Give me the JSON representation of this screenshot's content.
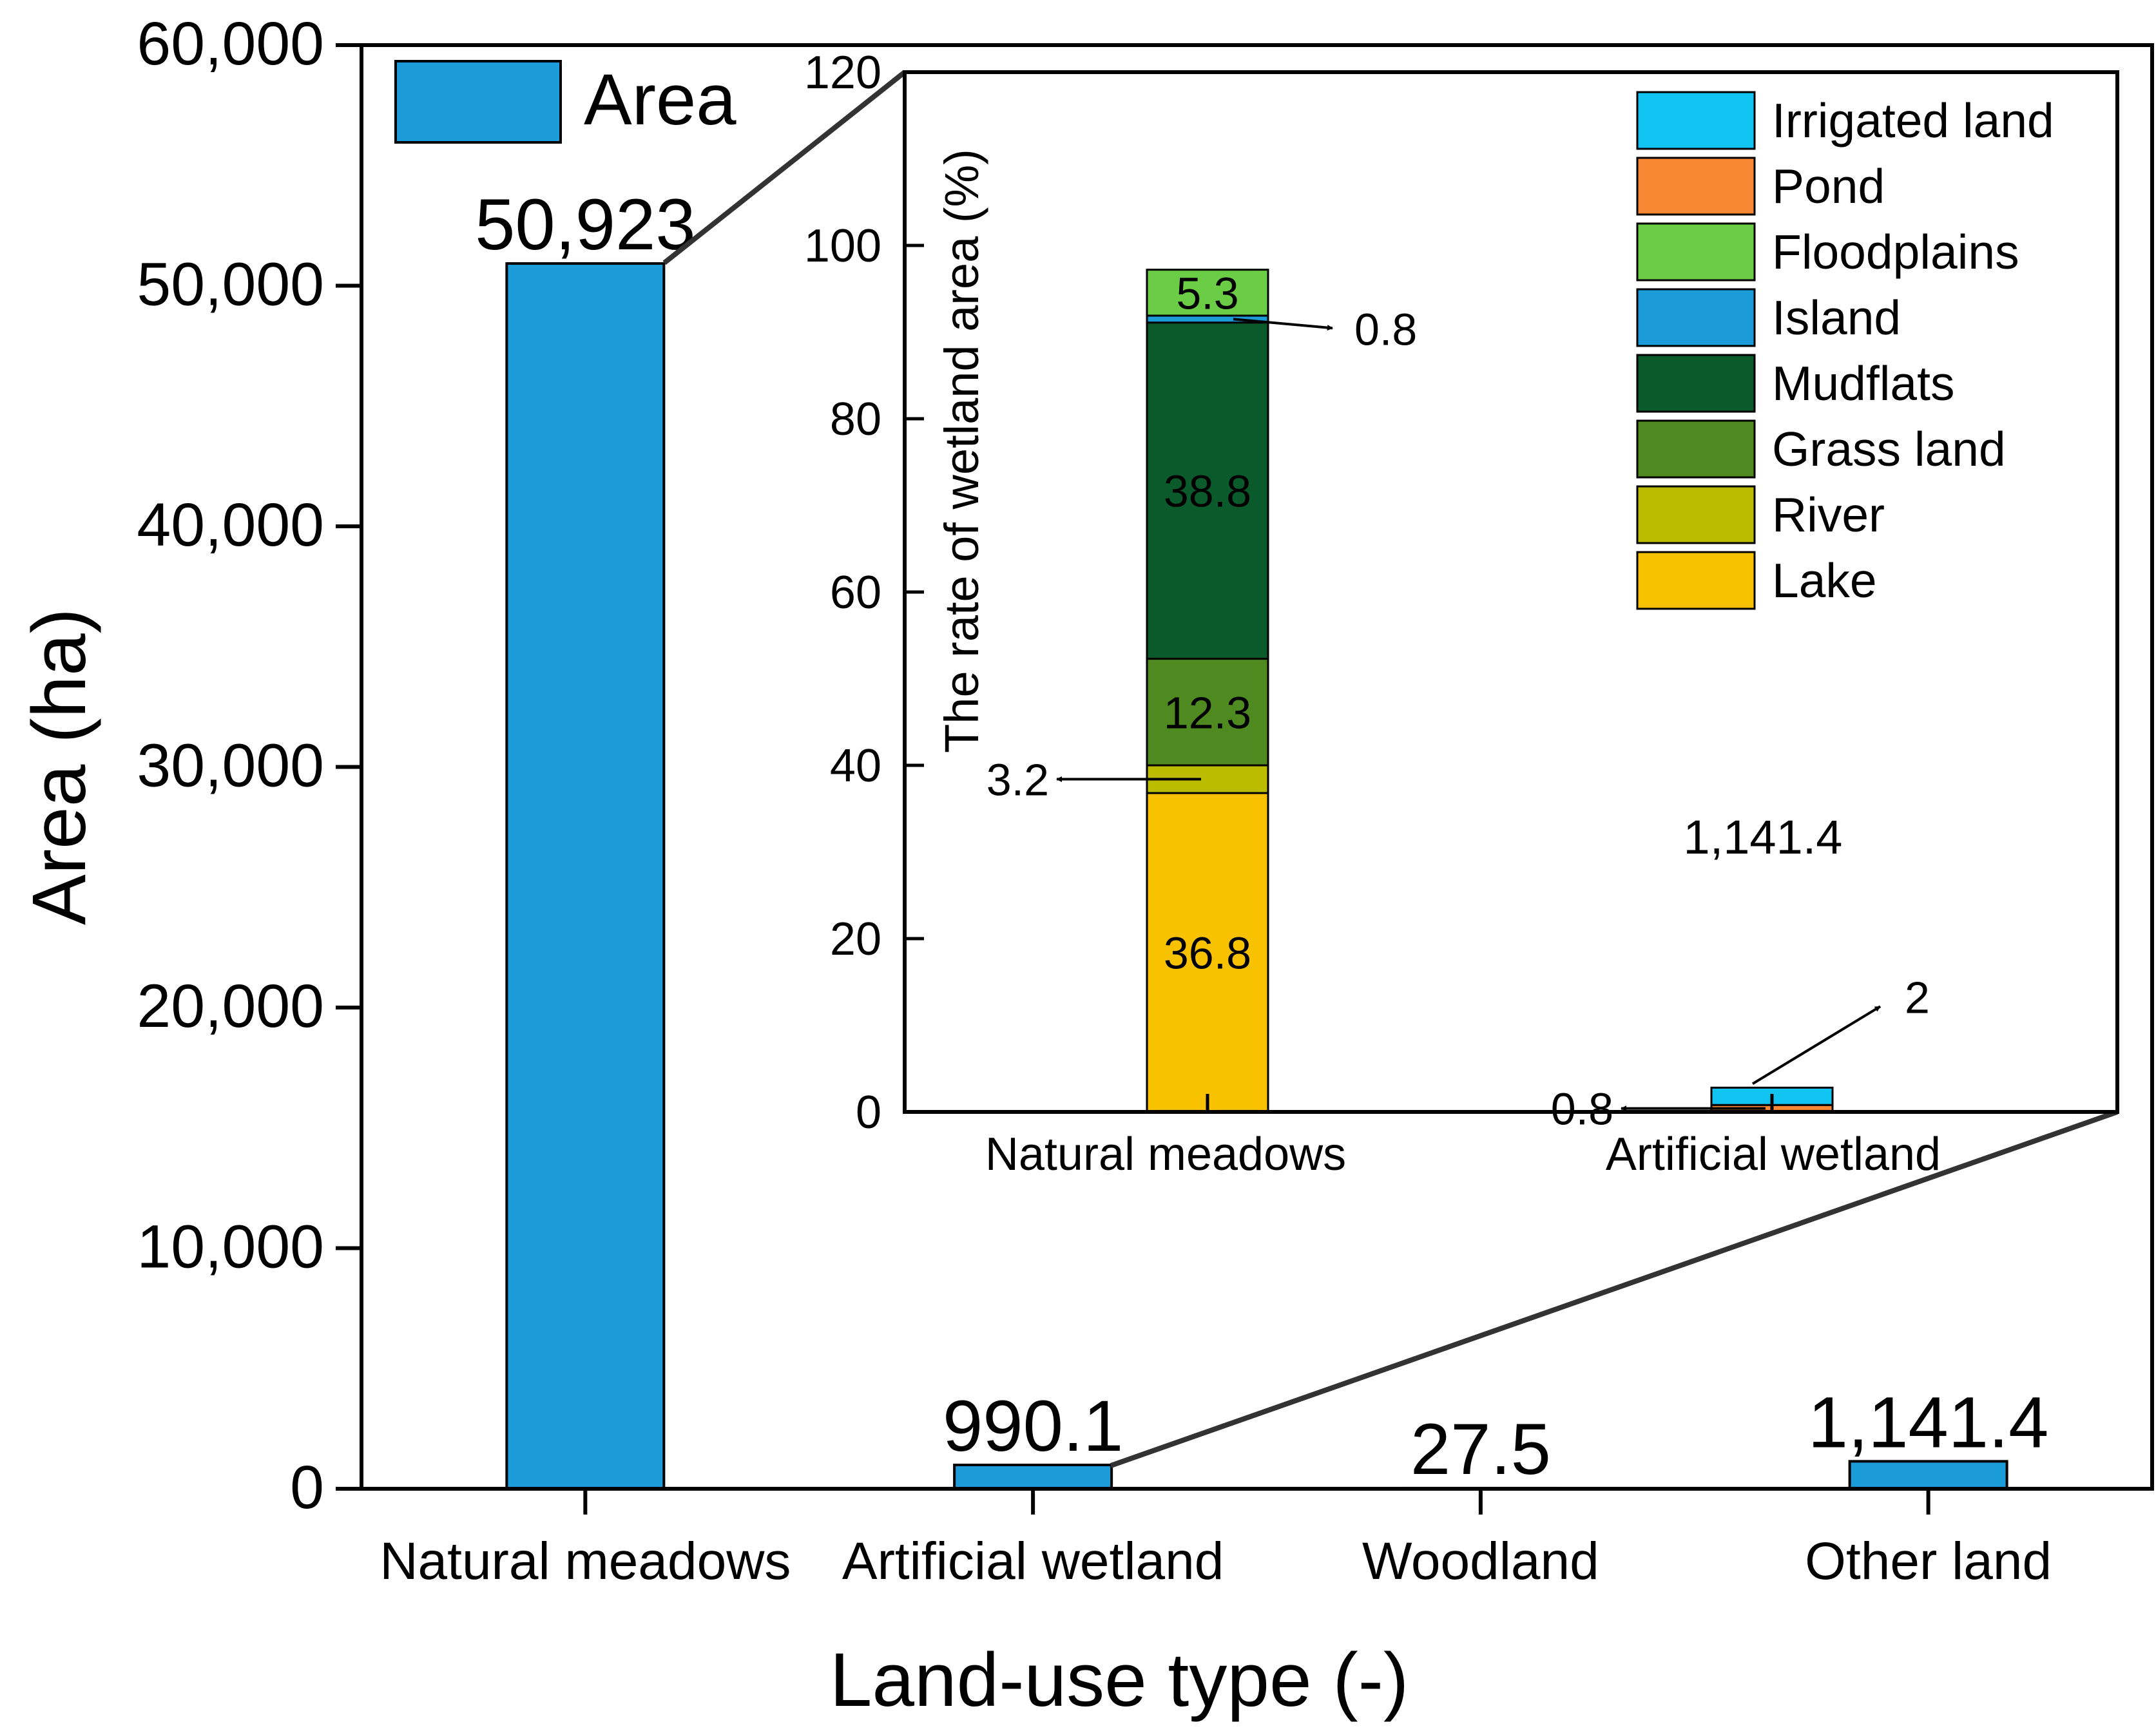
{
  "colors": {
    "area_bar": "#1b9bd7",
    "Irrigated land": "#12c4f2",
    "Pond": "#f98632",
    "Floodplains": "#6bcd45",
    "Island": "#1b9bd7",
    "Mudflats": "#0b5a2b",
    "Grass land": "#4f8a21",
    "River": "#bbbb00",
    "Lake": "#f8c200"
  },
  "chart_data": [
    {
      "id": "main",
      "type": "bar",
      "title": "",
      "xlabel": "Land-use type (-)",
      "ylabel": "Area (ha)",
      "ylim": [
        0,
        60000
      ],
      "yticks": [
        0,
        10000,
        20000,
        30000,
        40000,
        50000,
        60000
      ],
      "ytick_labels": [
        "0",
        "10,000",
        "20,000",
        "30,000",
        "40,000",
        "50,000",
        "60,000"
      ],
      "categories": [
        "Natural meadows",
        "Artificial wetland",
        "Woodland",
        "Other land"
      ],
      "series": [
        {
          "name": "Area",
          "values": [
            50923,
            990.1,
            27.5,
            1141.4
          ],
          "labels": [
            "50,923",
            "990.1",
            "27.5",
            "1,141.4"
          ]
        }
      ],
      "legend": {
        "position": "top-left",
        "entries": [
          "Area"
        ]
      }
    },
    {
      "id": "inset",
      "type": "bar",
      "stacked": true,
      "title": "",
      "xlabel": "",
      "ylabel": "The rate of wetland area (%)",
      "ylim": [
        0,
        120
      ],
      "yticks": [
        0,
        20,
        40,
        60,
        80,
        100,
        120
      ],
      "ytick_labels": [
        "0",
        "20",
        "40",
        "60",
        "80",
        "100",
        "120"
      ],
      "categories": [
        "Natural meadows",
        "Artificial wetland"
      ],
      "series": [
        {
          "name": "Lake",
          "values": [
            36.8,
            0
          ]
        },
        {
          "name": "River",
          "values": [
            3.2,
            0
          ]
        },
        {
          "name": "Grass land",
          "values": [
            12.3,
            0
          ]
        },
        {
          "name": "Mudflats",
          "values": [
            38.8,
            0
          ]
        },
        {
          "name": "Island",
          "values": [
            0.8,
            0
          ]
        },
        {
          "name": "Floodplains",
          "values": [
            5.3,
            0
          ]
        },
        {
          "name": "Pond",
          "values": [
            0,
            0.8
          ]
        },
        {
          "name": "Irrigated land",
          "values": [
            0,
            2
          ]
        }
      ],
      "annotations": [
        {
          "text": "36.8",
          "category": "Natural meadows",
          "series": "Lake",
          "style": "inside"
        },
        {
          "text": "3.2",
          "category": "Natural meadows",
          "series": "River",
          "style": "arrow-left"
        },
        {
          "text": "12.3",
          "category": "Natural meadows",
          "series": "Grass land",
          "style": "inside"
        },
        {
          "text": "38.8",
          "category": "Natural meadows",
          "series": "Mudflats",
          "style": "inside"
        },
        {
          "text": "0.8",
          "category": "Natural meadows",
          "series": "Island",
          "style": "arrow-right"
        },
        {
          "text": "5.3",
          "category": "Natural meadows",
          "series": "Floodplains",
          "style": "inside"
        },
        {
          "text": "0.8",
          "category": "Artificial wetland",
          "series": "Pond",
          "style": "arrow-left"
        },
        {
          "text": "2",
          "category": "Artificial wetland",
          "series": "Irrigated land",
          "style": "arrow-up-right"
        }
      ],
      "extra_label": "1,141.4",
      "legend": {
        "position": "top-right",
        "entries": [
          "Irrigated land",
          "Pond",
          "Floodplains",
          "Island",
          "Mudflats",
          "Grass land",
          "River",
          "Lake"
        ]
      }
    }
  ]
}
